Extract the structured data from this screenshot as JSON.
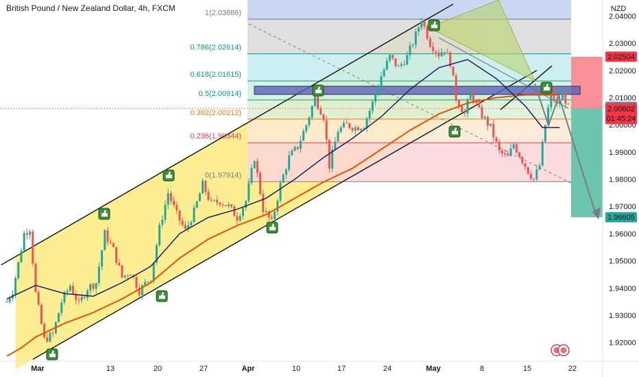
{
  "title": "British Pound / New Zealand Dollar, 4h, FXCM",
  "currency_label": "NZD",
  "chart_data": {
    "type": "candlestick",
    "title": "British Pound / New Zealand Dollar, 4h, FXCM",
    "y_unit": "NZD",
    "ylim": [
      1.9131,
      2.0449
    ],
    "x_ticks": [
      "Mar",
      "13",
      "20",
      "27",
      "Apr",
      "10",
      "17",
      "24",
      "May",
      "8",
      "15",
      "22"
    ],
    "y_ticks": [
      "2.04000",
      "2.03000",
      "2.02000",
      "2.01000",
      "2.00000",
      "1.99000",
      "1.98000",
      "1.97000",
      "1.96000",
      "1.95000",
      "1.94000",
      "1.93000",
      "1.92000"
    ],
    "price_path": [
      {
        "t": 0,
        "y": 1.935
      },
      {
        "t": 2,
        "y": 1.939
      },
      {
        "t": 4,
        "y": 1.949
      },
      {
        "t": 6,
        "y": 1.96
      },
      {
        "t": 8,
        "y": 1.962
      },
      {
        "t": 10,
        "y": 1.938
      },
      {
        "t": 13,
        "y": 1.921
      },
      {
        "t": 16,
        "y": 1.923
      },
      {
        "t": 19,
        "y": 1.935
      },
      {
        "t": 22,
        "y": 1.941
      },
      {
        "t": 25,
        "y": 1.934
      },
      {
        "t": 28,
        "y": 1.94
      },
      {
        "t": 31,
        "y": 1.942
      },
      {
        "t": 34,
        "y": 1.96
      },
      {
        "t": 37,
        "y": 1.954
      },
      {
        "t": 40,
        "y": 1.944
      },
      {
        "t": 43,
        "y": 1.946
      },
      {
        "t": 46,
        "y": 1.939
      },
      {
        "t": 50,
        "y": 1.944
      },
      {
        "t": 53,
        "y": 1.962
      },
      {
        "t": 56,
        "y": 1.975
      },
      {
        "t": 59,
        "y": 1.967
      },
      {
        "t": 62,
        "y": 1.961
      },
      {
        "t": 65,
        "y": 1.968
      },
      {
        "t": 68,
        "y": 1.978
      },
      {
        "t": 71,
        "y": 1.971
      },
      {
        "t": 74,
        "y": 1.972
      },
      {
        "t": 77,
        "y": 1.97
      },
      {
        "t": 80,
        "y": 1.966
      },
      {
        "t": 83,
        "y": 1.972
      },
      {
        "t": 86,
        "y": 1.988
      },
      {
        "t": 89,
        "y": 1.969
      },
      {
        "t": 92,
        "y": 1.964
      },
      {
        "t": 95,
        "y": 1.978
      },
      {
        "t": 98,
        "y": 1.988
      },
      {
        "t": 101,
        "y": 1.992
      },
      {
        "t": 104,
        "y": 2.0
      },
      {
        "t": 107,
        "y": 2.01
      },
      {
        "t": 110,
        "y": 2.003
      },
      {
        "t": 112,
        "y": 1.985
      },
      {
        "t": 115,
        "y": 1.998
      },
      {
        "t": 118,
        "y": 2.0
      },
      {
        "t": 121,
        "y": 1.999
      },
      {
        "t": 124,
        "y": 2.0
      },
      {
        "t": 127,
        "y": 2.008
      },
      {
        "t": 130,
        "y": 2.018
      },
      {
        "t": 133,
        "y": 2.025
      },
      {
        "t": 136,
        "y": 2.021
      },
      {
        "t": 139,
        "y": 2.025
      },
      {
        "t": 142,
        "y": 2.033
      },
      {
        "t": 144,
        "y": 2.039
      },
      {
        "t": 147,
        "y": 2.03
      },
      {
        "t": 150,
        "y": 2.026
      },
      {
        "t": 152,
        "y": 2.028
      },
      {
        "t": 154,
        "y": 2.023
      },
      {
        "t": 156,
        "y": 2.01
      },
      {
        "t": 159,
        "y": 2.004
      },
      {
        "t": 161,
        "y": 2.012
      },
      {
        "t": 164,
        "y": 2.005
      },
      {
        "t": 166,
        "y": 2.002
      },
      {
        "t": 168,
        "y": 1.999
      },
      {
        "t": 171,
        "y": 1.99
      },
      {
        "t": 174,
        "y": 1.988
      },
      {
        "t": 176,
        "y": 1.993
      },
      {
        "t": 178,
        "y": 1.989
      },
      {
        "t": 181,
        "y": 1.983
      },
      {
        "t": 183,
        "y": 1.98
      },
      {
        "t": 185,
        "y": 1.985
      },
      {
        "t": 187,
        "y": 2.0
      },
      {
        "t": 189,
        "y": 2.012
      },
      {
        "t": 191,
        "y": 2.007
      },
      {
        "t": 193,
        "y": 2.012
      },
      {
        "t": 195,
        "y": 2.006
      }
    ],
    "last_t": 195,
    "ema_fast": [
      {
        "t": 0,
        "y": 1.936
      },
      {
        "t": 10,
        "y": 1.941
      },
      {
        "t": 20,
        "y": 1.938
      },
      {
        "t": 30,
        "y": 1.937
      },
      {
        "t": 40,
        "y": 1.942
      },
      {
        "t": 50,
        "y": 1.948
      },
      {
        "t": 60,
        "y": 1.96
      },
      {
        "t": 70,
        "y": 1.966
      },
      {
        "t": 80,
        "y": 1.969
      },
      {
        "t": 90,
        "y": 1.973
      },
      {
        "t": 100,
        "y": 1.98
      },
      {
        "t": 110,
        "y": 1.988
      },
      {
        "t": 120,
        "y": 1.995
      },
      {
        "t": 130,
        "y": 2.003
      },
      {
        "t": 140,
        "y": 2.013
      },
      {
        "t": 150,
        "y": 2.021
      },
      {
        "t": 160,
        "y": 2.024
      },
      {
        "t": 170,
        "y": 2.017
      },
      {
        "t": 180,
        "y": 2.007
      },
      {
        "t": 186,
        "y": 1.999
      },
      {
        "t": 192,
        "y": 1.999
      }
    ],
    "ema_slow": [
      {
        "t": 0,
        "y": 1.915
      },
      {
        "t": 5,
        "y": 1.918
      },
      {
        "t": 10,
        "y": 1.922
      },
      {
        "t": 20,
        "y": 1.927
      },
      {
        "t": 30,
        "y": 1.931
      },
      {
        "t": 40,
        "y": 1.936
      },
      {
        "t": 50,
        "y": 1.942
      },
      {
        "t": 60,
        "y": 1.951
      },
      {
        "t": 70,
        "y": 1.958
      },
      {
        "t": 80,
        "y": 1.963
      },
      {
        "t": 90,
        "y": 1.967
      },
      {
        "t": 100,
        "y": 1.973
      },
      {
        "t": 110,
        "y": 1.979
      },
      {
        "t": 120,
        "y": 1.984
      },
      {
        "t": 130,
        "y": 1.991
      },
      {
        "t": 140,
        "y": 1.998
      },
      {
        "t": 150,
        "y": 2.004
      },
      {
        "t": 160,
        "y": 2.008
      },
      {
        "t": 170,
        "y": 2.01
      },
      {
        "t": 180,
        "y": 2.011
      },
      {
        "t": 192,
        "y": 2.011
      }
    ],
    "fib_levels": [
      {
        "label": "1(2.03886)",
        "value": 2.03886,
        "color": "#787b86",
        "fill": "#c9d7f2"
      },
      {
        "label": "0.786(2.02614)",
        "value": 2.02614,
        "color": "#089981",
        "fill": "#d9d9d9"
      },
      {
        "label": "0.618(2.01615)",
        "value": 2.01615,
        "color": "#089981",
        "fill": "#c4ecf0"
      },
      {
        "label": "0.5(2.00914)",
        "value": 2.00914,
        "color": "#089981",
        "fill": "#cfeedd"
      },
      {
        "label": "0.382(2.00212)",
        "value": 2.00212,
        "color": "#f57c00",
        "fill": "#dbf0d8"
      },
      {
        "label": "0.236(1.99344)",
        "value": 1.99344,
        "color": "#f23645",
        "fill": "#fde9d4"
      },
      {
        "label": "0(1.97914)",
        "value": 1.97914,
        "color": "#787b86",
        "fill": "#fbd6d9"
      }
    ],
    "price_labels": [
      {
        "text": "2.02504",
        "value": 2.02504,
        "bg": "#f23645",
        "fg": "#ffffff"
      },
      {
        "text": "2.00660",
        "value": 2.0066,
        "bg": "#787b86",
        "fg": "#ffffff"
      },
      {
        "text": "2.00602",
        "value": 2.00602,
        "bg": "#f23645",
        "fg": "#ffffff",
        "sub": "01:45:24"
      },
      {
        "text": "1.96605",
        "value": 1.96605,
        "bg": "#26a69a",
        "fg": "#ffffff"
      }
    ],
    "trade_box": {
      "entry": 2.00602,
      "stop": 2.02504,
      "target": 1.96605
    },
    "resistance_zone": {
      "top": 2.0142,
      "bottom": 2.0112
    },
    "channel": {
      "upper": [
        {
          "t": -2,
          "y": 1.9485
        },
        {
          "t": 155,
          "y": 2.0444
        }
      ],
      "lower": [
        {
          "t": 9,
          "y": 1.9138
        },
        {
          "t": 184,
          "y": 2.02
        }
      ]
    },
    "colors": {
      "up": "#26a69a",
      "down": "#ef5350",
      "ema_fast": "#1a2060",
      "ema_slow": "#e65100",
      "channel_fill": "#fde03a",
      "target_fill": "#5cbfa3",
      "stop_fill": "#f77c85"
    }
  }
}
